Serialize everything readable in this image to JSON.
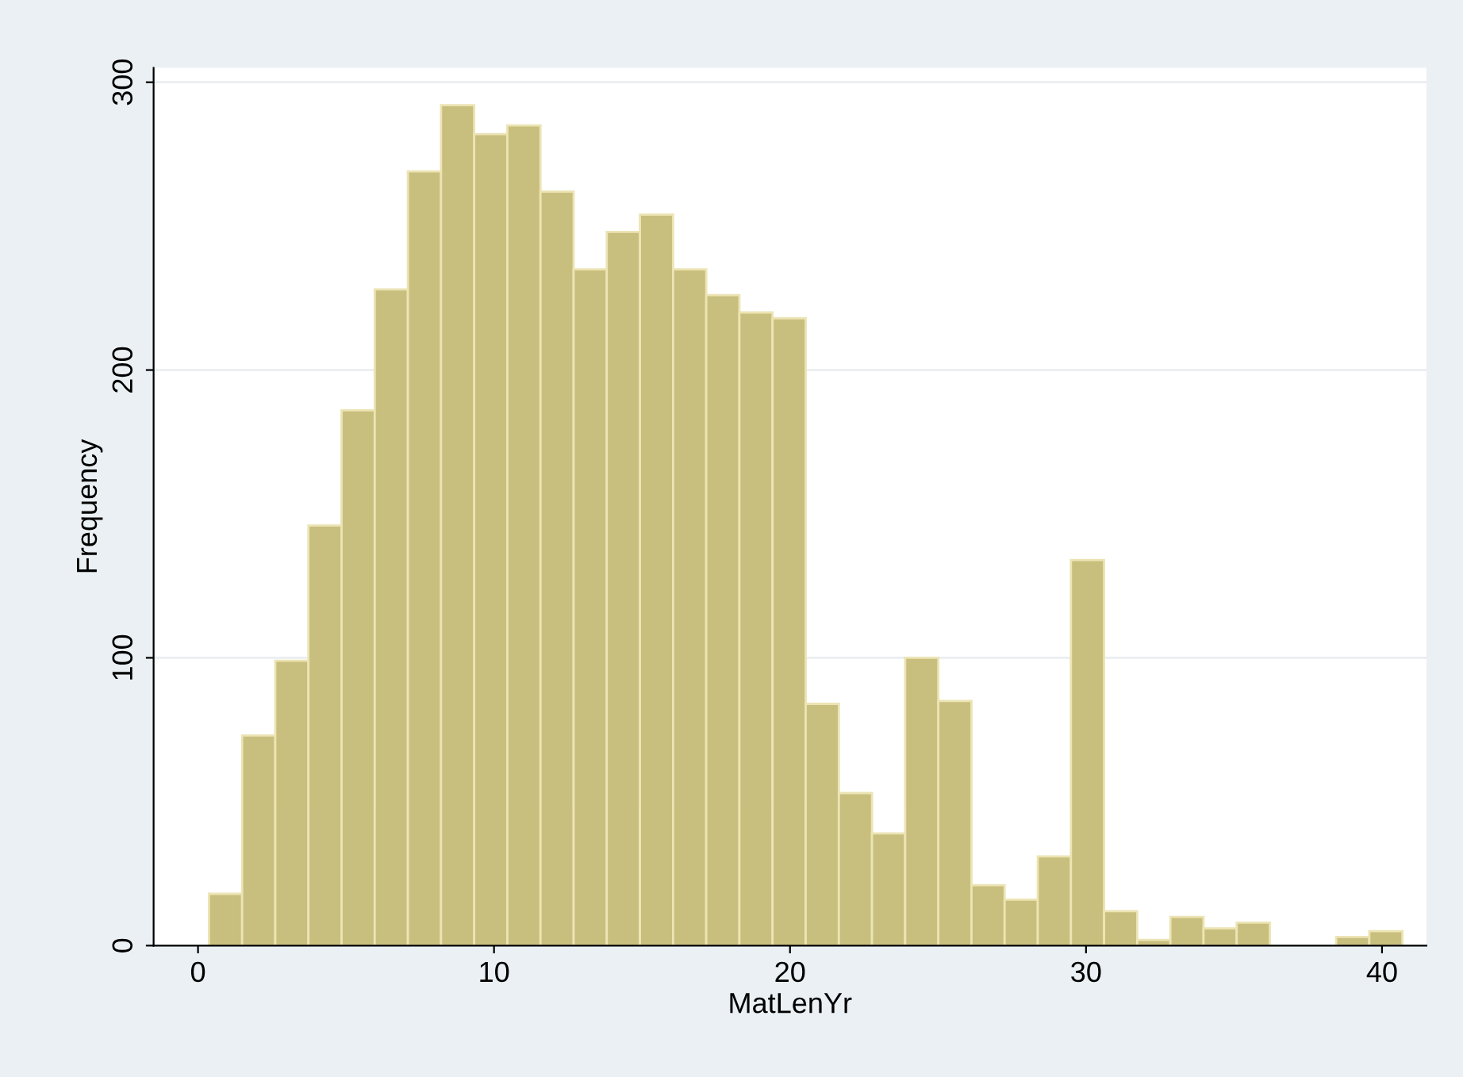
{
  "chart_data": {
    "type": "histogram",
    "xlabel": "MatLenYr",
    "ylabel": "Frequency",
    "bins": [
      0.37,
      1.49,
      2.61,
      3.73,
      4.85,
      5.97,
      7.09,
      8.21,
      9.33,
      10.45,
      11.57,
      12.69,
      13.81,
      14.93,
      16.05,
      17.17,
      18.29,
      19.41,
      20.53,
      21.65,
      22.77,
      23.89,
      25.01,
      26.13,
      27.25,
      28.37,
      29.49,
      30.61,
      31.73,
      32.85,
      33.97,
      35.09,
      36.21,
      37.33,
      38.45,
      39.57,
      40.69
    ],
    "values": [
      18,
      73,
      99,
      146,
      186,
      228,
      269,
      292,
      282,
      285,
      262,
      235,
      248,
      254,
      235,
      226,
      220,
      218,
      84,
      53,
      39,
      100,
      85,
      21,
      16,
      31,
      134,
      12,
      2,
      10,
      6,
      8,
      0,
      0,
      3,
      5
    ],
    "color": "#c8bf7e",
    "xlim": [
      -1.5,
      41.5
    ],
    "xticks": [
      0,
      10,
      20,
      30,
      40
    ],
    "ylim": [
      0,
      305
    ],
    "yticks": [
      0,
      100,
      200,
      300
    ],
    "grid": "y"
  }
}
